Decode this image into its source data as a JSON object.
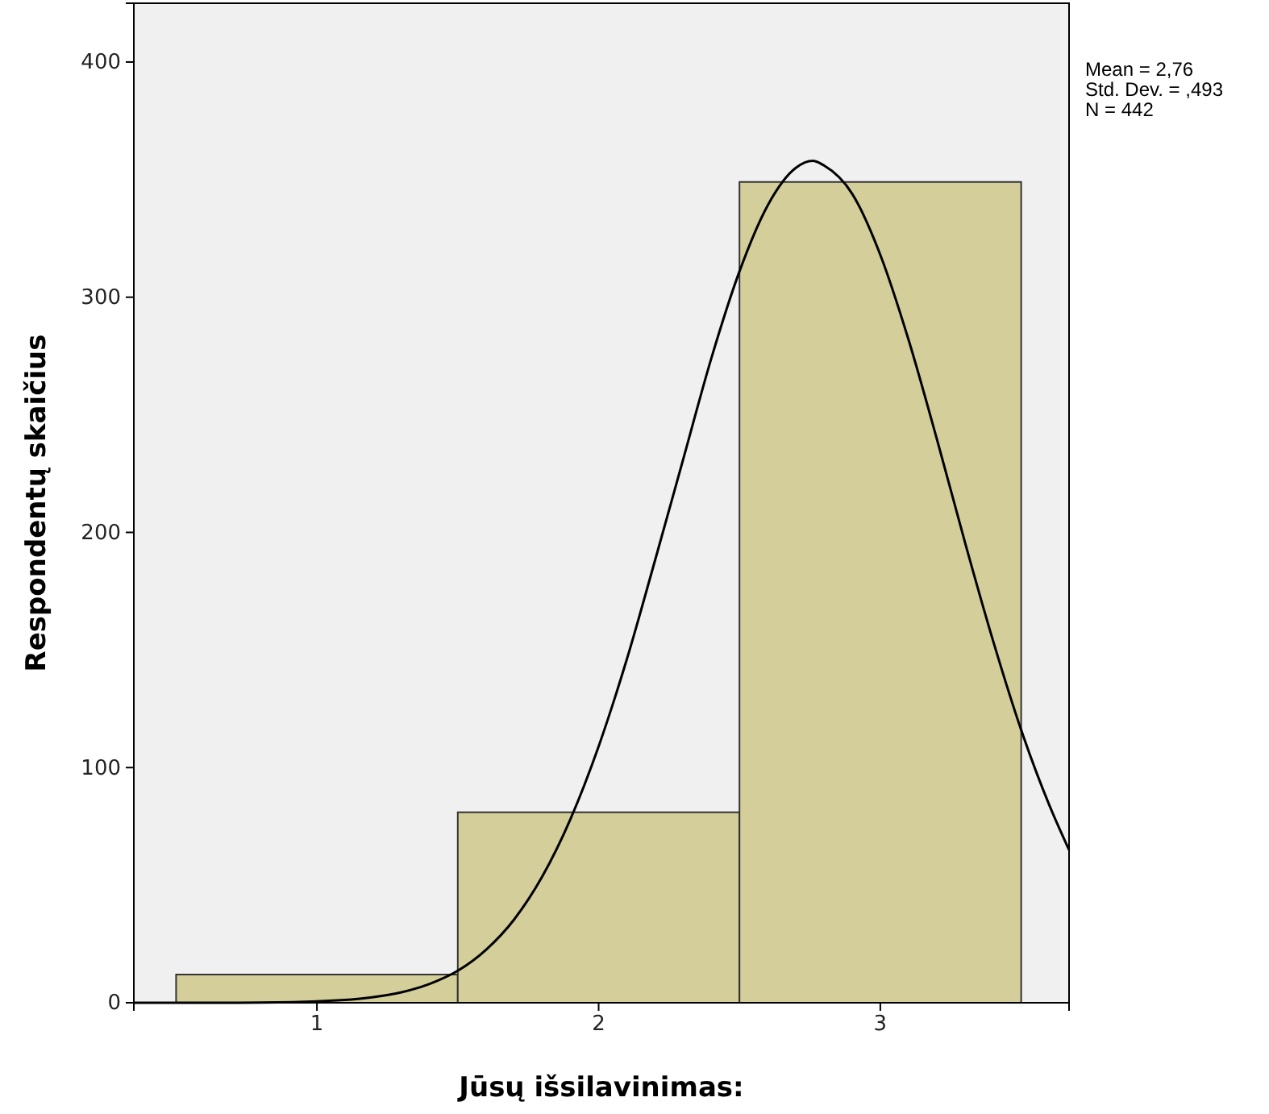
{
  "chart_data": {
    "type": "histogram",
    "xlabel": "Jūsų išsilavinimas:",
    "ylabel": "Respondentų skaičius",
    "bins": [
      0.5,
      1.5,
      2.5,
      3.5
    ],
    "values": [
      12,
      81,
      349
    ],
    "color": "#d3ce9a",
    "xlim": [
      0.35,
      3.67
    ],
    "xticks": [
      1,
      2,
      3
    ],
    "ylim": [
      0,
      425
    ],
    "yticks": [
      0,
      100,
      200,
      300,
      400
    ],
    "grid": false,
    "series": [
      {
        "type": "line",
        "color": "#000000",
        "x": [
          0.35,
          0.6,
          0.8,
          1.0,
          1.2,
          1.4,
          1.5,
          1.6,
          1.7,
          1.8,
          1.9,
          2.0,
          2.1,
          2.2,
          2.3,
          2.4,
          2.5,
          2.6,
          2.7,
          2.76,
          2.8,
          2.9,
          3.0,
          3.1,
          3.2,
          3.3,
          3.4,
          3.5,
          3.6,
          3.67
        ],
        "values": [
          0,
          0,
          0.1,
          0.6,
          2.4,
          8,
          13.6,
          22.5,
          35.4,
          53.7,
          78.1,
          109,
          146,
          188,
          231,
          274,
          311,
          339,
          355,
          358,
          356,
          344,
          318,
          282,
          240,
          196,
          154,
          116,
          84,
          65
        ]
      }
    ],
    "annotations": [
      "Mean = 2,76",
      "Std. Dev. = ,493",
      "N = 442"
    ]
  }
}
